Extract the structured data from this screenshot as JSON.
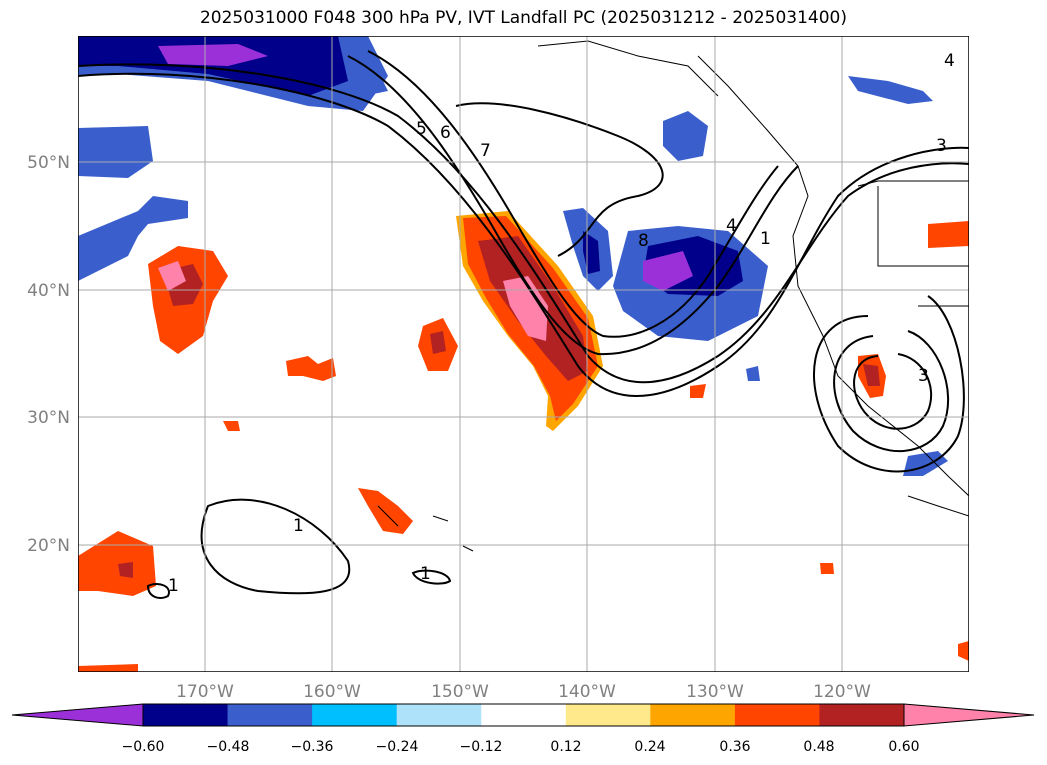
{
  "title": "2025031000 F048 300 hPa PV, IVT Landfall PC (2025031212 - 2025031400)",
  "map": {
    "lon_labels": [
      "170°W",
      "160°W",
      "150°W",
      "140°W",
      "130°W",
      "120°W"
    ],
    "lat_labels": [
      "50°N",
      "40°N",
      "30°N",
      "20°N"
    ],
    "contour_labels": [
      "5",
      "6",
      "7",
      "8",
      "4",
      "1",
      "3",
      "1",
      "1",
      "1",
      "3",
      "4"
    ]
  },
  "colorbar": {
    "colors": [
      "#9b30d9",
      "#00008b",
      "#3a5fcd",
      "#00bfff",
      "#aee2fa",
      "#ffffff",
      "#ffe98a",
      "#ffa500",
      "#ff4500",
      "#b22222",
      "#ff82ab"
    ],
    "tick_labels": [
      "−0.60",
      "−0.48",
      "−0.36",
      "−0.24",
      "−0.12",
      "0.12",
      "0.24",
      "0.36",
      "0.48",
      "0.60"
    ]
  }
}
